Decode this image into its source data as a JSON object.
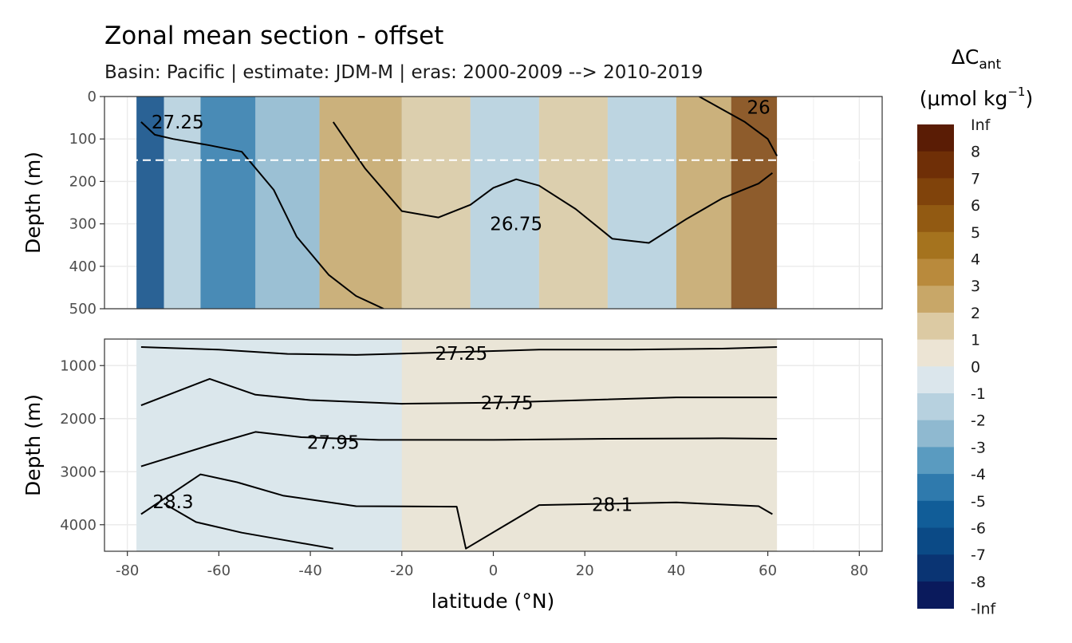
{
  "colors": {
    "positive_max": "#5a1c05",
    "positive_mid": "#b98a3c",
    "neutral_pos": "#ece4d4",
    "neutral_neg": "#dbe6ec",
    "negative_mid": "#5a9bc0",
    "negative_max": "#0a1a5c",
    "contour": "#000000",
    "panel_border": "#333333",
    "grid": "#ebebeb"
  },
  "chart_data": {
    "type": "heatmap",
    "title": "Zonal mean section - offset",
    "subtitle": "Basin: Pacific | estimate: JDM-M | eras: 2000-2009 --> 2010-2019",
    "xlabel": "latitude (°N)",
    "ylabel": "Depth (m)",
    "xlim": [
      -85,
      85
    ],
    "x_ticks": [
      "-80",
      "-60",
      "-40",
      "-20",
      "0",
      "20",
      "40",
      "60",
      "80"
    ],
    "data_extent_lat": [
      -78,
      62
    ],
    "reference_line_depth": 150,
    "panels": [
      {
        "name": "upper",
        "ylim": [
          0,
          500
        ],
        "y_ticks": [
          "0",
          "100",
          "200",
          "300",
          "400",
          "500"
        ],
        "contour_labels": [
          "27.25",
          "26.75",
          "26"
        ],
        "field_pattern": [
          {
            "lat_range": [
              -78,
              -72
            ],
            "value": -7
          },
          {
            "lat_range": [
              -72,
              -64
            ],
            "value": -2
          },
          {
            "lat_range": [
              -64,
              -52
            ],
            "value": -5
          },
          {
            "lat_range": [
              -52,
              -38
            ],
            "value": -3
          },
          {
            "lat_range": [
              -38,
              -20
            ],
            "value": 2
          },
          {
            "lat_range": [
              -20,
              -5
            ],
            "value": 1
          },
          {
            "lat_range": [
              -5,
              10
            ],
            "value": -2
          },
          {
            "lat_range": [
              10,
              25
            ],
            "value": 1
          },
          {
            "lat_range": [
              25,
              40
            ],
            "value": -2
          },
          {
            "lat_range": [
              40,
              52
            ],
            "value": 2
          },
          {
            "lat_range": [
              52,
              62
            ],
            "value": 6
          }
        ],
        "isopycnals": [
          {
            "label": "26",
            "lat": [
              45,
              50,
              55,
              60,
              62
            ],
            "depth": [
              0,
              30,
              60,
              100,
              140
            ]
          },
          {
            "label": "26.75",
            "lat": [
              -35,
              -28,
              -20,
              -12,
              -5,
              0,
              5,
              10,
              18,
              26,
              34,
              42,
              50,
              58,
              61
            ],
            "depth": [
              60,
              170,
              270,
              285,
              255,
              215,
              195,
              210,
              265,
              335,
              345,
              290,
              240,
              205,
              180
            ]
          },
          {
            "label": "27.25",
            "lat": [
              -77,
              -74,
              -70,
              -62,
              -55,
              -48,
              -43,
              -36,
              -30,
              -24
            ],
            "depth": [
              60,
              90,
              100,
              115,
              130,
              220,
              330,
              420,
              470,
              500
            ]
          }
        ]
      },
      {
        "name": "lower",
        "ylim": [
          500,
          4500
        ],
        "y_ticks": [
          "1000",
          "2000",
          "3000",
          "4000"
        ],
        "contour_labels": [
          "27.25",
          "27.75",
          "27.95",
          "28.3",
          "28.1"
        ],
        "field_pattern": [
          {
            "lat_range": [
              -78,
              -20
            ],
            "value": -0.5
          },
          {
            "lat_range": [
              -20,
              62
            ],
            "value": 0.5
          }
        ],
        "isopycnals": [
          {
            "label": "27.25",
            "lat": [
              -77,
              -60,
              -45,
              -30,
              -10,
              10,
              30,
              50,
              62
            ],
            "depth": [
              650,
              700,
              780,
              800,
              750,
              700,
              700,
              680,
              650
            ]
          },
          {
            "label": "27.75",
            "lat": [
              -77,
              -62,
              -52,
              -40,
              -20,
              0,
              20,
              40,
              62
            ],
            "depth": [
              1750,
              1250,
              1550,
              1650,
              1720,
              1700,
              1650,
              1600,
              1600
            ]
          },
          {
            "label": "27.95",
            "lat": [
              -77,
              -62,
              -52,
              -42,
              -25,
              0,
              25,
              50,
              62
            ],
            "depth": [
              2900,
              2500,
              2250,
              2350,
              2400,
              2400,
              2380,
              2370,
              2380
            ]
          },
          {
            "label": "28.1",
            "lat": [
              -77,
              -64,
              -56,
              -46,
              -30,
              -8,
              -6,
              10,
              40,
              58,
              61
            ],
            "depth": [
              3800,
              3050,
              3200,
              3450,
              3650,
              3660,
              4450,
              3630,
              3580,
              3650,
              3800
            ]
          },
          {
            "label": "28.3",
            "lat": [
              -72,
              -65,
              -55,
              -45,
              -35
            ],
            "depth": [
              3600,
              3950,
              4150,
              4300,
              4450
            ]
          }
        ]
      }
    ],
    "legend": {
      "title": "ΔC",
      "title_subscript": "ant",
      "units": "(μmol kg",
      "units_superscript": "−1",
      "units_close": ")",
      "levels": [
        "Inf",
        "8",
        "7",
        "6",
        "5",
        "4",
        "3",
        "2",
        "1",
        "0",
        "-1",
        "-2",
        "-3",
        "-4",
        "-5",
        "-6",
        "-7",
        "-8",
        "-Inf"
      ],
      "colors": [
        "#5a1c05",
        "#6f2f07",
        "#80430b",
        "#925a12",
        "#a5731e",
        "#b98a3c",
        "#c8a768",
        "#dccaa3",
        "#ece4d4",
        "#dbe6ec",
        "#b7d1df",
        "#8fb9d0",
        "#5a9bc0",
        "#2f7aad",
        "#115d98",
        "#0b4a86",
        "#0a3473",
        "#0a1a5c"
      ]
    }
  }
}
